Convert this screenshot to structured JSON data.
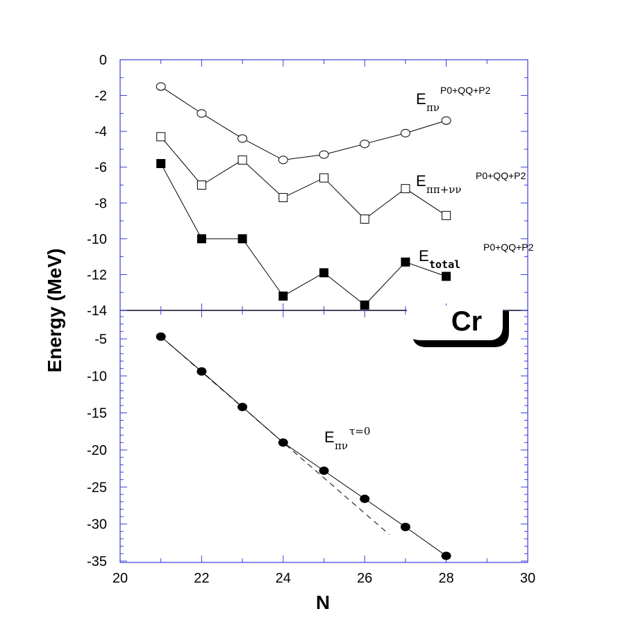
{
  "chart_data": {
    "type": "line",
    "x": [
      21,
      22,
      23,
      24,
      25,
      26,
      27,
      28
    ],
    "xlabel": "N",
    "ylabel": "Energy (MeV)",
    "xlim": [
      20,
      30
    ],
    "xticks": [
      "20",
      "22",
      "24",
      "26",
      "28",
      "30"
    ],
    "grid": false,
    "panels": [
      {
        "name": "top",
        "ylim": [
          -14,
          0
        ],
        "yticks": [
          "0",
          "-2",
          "-4",
          "-6",
          "-8",
          "-10",
          "-12",
          "-14"
        ],
        "series": [
          {
            "values": [
              -1.5,
              -3.0,
              -4.4,
              -5.6,
              -5.3,
              -4.7,
              -4.1,
              -3.4
            ],
            "marker": "open-circle",
            "label": {
              "main": "E",
              "sub": "πν",
              "sup": "P0+QQ+P2"
            }
          },
          {
            "values": [
              -4.3,
              -7.0,
              -5.6,
              -7.7,
              -6.6,
              -8.9,
              -7.2,
              -8.7
            ],
            "marker": "open-square",
            "label": {
              "main": "E",
              "sub": "ππ+νν",
              "sup": "P0+QQ+P2"
            }
          },
          {
            "values": [
              -5.8,
              -10.0,
              -10.0,
              -13.2,
              -11.9,
              -13.7,
              -11.3,
              -12.1
            ],
            "marker": "filled-square",
            "label": {
              "main": "E",
              "sub": "total",
              "sup": "P0+QQ+P2"
            }
          }
        ]
      },
      {
        "name": "bottom",
        "ylim": [
          -35,
          -2
        ],
        "yticks": [
          "-5",
          "-10",
          "-15",
          "-20",
          "-25",
          "-30",
          "-35"
        ],
        "series": [
          {
            "values": [
              -4.7,
              -9.4,
              -14.2,
              -19.0,
              -22.8,
              -26.6,
              -30.4,
              -34.3
            ],
            "marker": "filled-circle",
            "label": {
              "main": "E",
              "sub": "πν",
              "sup": "τ=0"
            }
          }
        ],
        "reference_line": {
          "style": "dashed",
          "x": [
            21,
            26.6
          ],
          "values": [
            -4.7,
            -31.4
          ]
        }
      }
    ],
    "annotation": "Cr"
  }
}
